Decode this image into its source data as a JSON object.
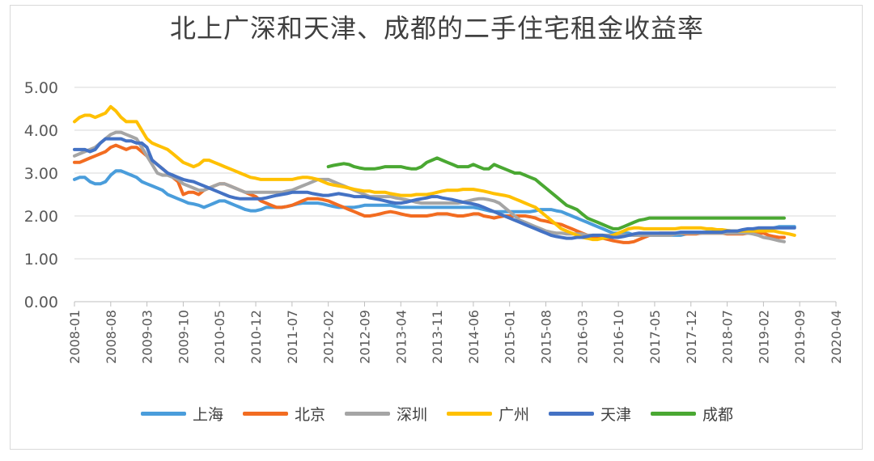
{
  "chart_data": {
    "type": "line",
    "title": "北上广深和天津、成都的二手住宅租金收益率",
    "xlabel": "",
    "ylabel": "",
    "ylim": [
      0,
      5
    ],
    "yticks": [
      "0.00",
      "1.00",
      "2.00",
      "3.00",
      "4.00",
      "5.00"
    ],
    "xticks": [
      "2008-01",
      "2008-08",
      "2009-03",
      "2009-10",
      "2010-05",
      "2010-12",
      "2011-07",
      "2012-02",
      "2012-09",
      "2013-04",
      "2013-11",
      "2014-06",
      "2015-01",
      "2015-08",
      "2016-03",
      "2016-10",
      "2017-05",
      "2017-12",
      "2018-07",
      "2019-02",
      "2019-09",
      "2020-04"
    ],
    "grid": true,
    "legend_position": "bottom",
    "series": [
      {
        "name": "上海",
        "color": "#4a9ddb",
        "start_index": 0,
        "values": [
          2.85,
          2.9,
          2.9,
          2.8,
          2.75,
          2.75,
          2.8,
          2.95,
          3.05,
          3.05,
          3.0,
          2.95,
          2.9,
          2.8,
          2.75,
          2.7,
          2.65,
          2.6,
          2.5,
          2.45,
          2.4,
          2.35,
          2.3,
          2.28,
          2.25,
          2.2,
          2.25,
          2.3,
          2.35,
          2.35,
          2.3,
          2.25,
          2.2,
          2.15,
          2.12,
          2.12,
          2.15,
          2.2,
          2.2,
          2.2,
          2.2,
          2.22,
          2.25,
          2.28,
          2.3,
          2.3,
          2.3,
          2.3,
          2.28,
          2.25,
          2.22,
          2.2,
          2.2,
          2.2,
          2.2,
          2.22,
          2.25,
          2.25,
          2.25,
          2.25,
          2.25,
          2.25,
          2.22,
          2.2,
          2.2,
          2.2,
          2.2,
          2.2,
          2.2,
          2.2,
          2.2,
          2.2,
          2.2,
          2.2,
          2.2,
          2.2,
          2.2,
          2.2,
          2.18,
          2.15,
          2.12,
          2.1,
          2.1,
          2.1,
          2.1,
          2.1,
          2.1,
          2.1,
          2.1,
          2.12,
          2.15,
          2.15,
          2.15,
          2.12,
          2.1,
          2.05,
          2.0,
          1.95,
          1.9,
          1.85,
          1.8,
          1.75,
          1.7,
          1.65,
          1.6,
          1.6,
          1.6,
          1.6,
          1.55,
          1.55,
          1.55,
          1.55,
          1.55,
          1.55,
          1.55,
          1.55,
          1.55,
          1.55,
          1.58,
          1.6,
          1.6,
          1.6,
          1.62,
          1.62,
          1.62,
          1.62,
          1.62,
          1.65,
          1.65,
          1.65,
          1.65,
          1.65,
          1.65,
          1.68,
          1.7,
          1.72,
          1.75,
          1.75,
          1.75,
          1.75
        ]
      },
      {
        "name": "北京",
        "color": "#f26c21",
        "start_index": 0,
        "values": [
          3.25,
          3.25,
          3.3,
          3.35,
          3.4,
          3.45,
          3.5,
          3.6,
          3.65,
          3.6,
          3.55,
          3.6,
          3.6,
          3.5,
          3.4,
          3.3,
          3.2,
          3.1,
          3.0,
          2.9,
          2.8,
          2.5,
          2.55,
          2.55,
          2.5,
          2.6,
          2.65,
          2.7,
          2.75,
          2.75,
          2.7,
          2.65,
          2.6,
          2.55,
          2.5,
          2.45,
          2.35,
          2.3,
          2.25,
          2.2,
          2.2,
          2.22,
          2.25,
          2.3,
          2.35,
          2.4,
          2.4,
          2.4,
          2.38,
          2.35,
          2.3,
          2.25,
          2.2,
          2.15,
          2.1,
          2.05,
          2.0,
          2.0,
          2.02,
          2.05,
          2.08,
          2.1,
          2.08,
          2.05,
          2.02,
          2.0,
          2.0,
          2.0,
          2.0,
          2.02,
          2.05,
          2.05,
          2.05,
          2.02,
          2.0,
          2.0,
          2.02,
          2.05,
          2.05,
          2.0,
          1.98,
          1.95,
          1.98,
          2.0,
          2.0,
          2.0,
          2.0,
          2.0,
          1.98,
          1.95,
          1.9,
          1.88,
          1.85,
          1.82,
          1.8,
          1.75,
          1.7,
          1.65,
          1.6,
          1.55,
          1.52,
          1.5,
          1.48,
          1.45,
          1.42,
          1.4,
          1.38,
          1.38,
          1.4,
          1.45,
          1.5,
          1.55,
          1.58,
          1.6,
          1.6,
          1.6,
          1.6,
          1.6,
          1.58,
          1.58,
          1.58,
          1.6,
          1.6,
          1.6,
          1.6,
          1.6,
          1.58,
          1.58,
          1.58,
          1.58,
          1.6,
          1.6,
          1.6,
          1.6,
          1.55,
          1.52,
          1.5,
          1.5
        ]
      },
      {
        "name": "深圳",
        "color": "#a5a5a5",
        "start_index": 0,
        "values": [
          3.4,
          3.45,
          3.5,
          3.55,
          3.6,
          3.7,
          3.8,
          3.9,
          3.95,
          3.95,
          3.9,
          3.85,
          3.8,
          3.6,
          3.4,
          3.2,
          3.0,
          2.95,
          2.95,
          2.9,
          2.85,
          2.75,
          2.7,
          2.65,
          2.6,
          2.6,
          2.65,
          2.7,
          2.75,
          2.75,
          2.7,
          2.65,
          2.6,
          2.55,
          2.55,
          2.55,
          2.55,
          2.55,
          2.55,
          2.55,
          2.55,
          2.58,
          2.6,
          2.65,
          2.7,
          2.75,
          2.8,
          2.85,
          2.85,
          2.85,
          2.8,
          2.75,
          2.7,
          2.65,
          2.6,
          2.55,
          2.5,
          2.45,
          2.45,
          2.45,
          2.45,
          2.45,
          2.42,
          2.4,
          2.38,
          2.35,
          2.32,
          2.3,
          2.3,
          2.3,
          2.3,
          2.3,
          2.3,
          2.3,
          2.3,
          2.32,
          2.35,
          2.38,
          2.4,
          2.4,
          2.38,
          2.35,
          2.3,
          2.2,
          2.1,
          2.0,
          1.9,
          1.85,
          1.8,
          1.75,
          1.7,
          1.65,
          1.62,
          1.6,
          1.6,
          1.58,
          1.58,
          1.58,
          1.58,
          1.55,
          1.55,
          1.55,
          1.55,
          1.55,
          1.55,
          1.55,
          1.55,
          1.55,
          1.55,
          1.55,
          1.55,
          1.55,
          1.55,
          1.55,
          1.55,
          1.55,
          1.58,
          1.6,
          1.6,
          1.6,
          1.6,
          1.6,
          1.6,
          1.6,
          1.6,
          1.6,
          1.6,
          1.6,
          1.6,
          1.6,
          1.6,
          1.58,
          1.55,
          1.5,
          1.48,
          1.45,
          1.42,
          1.4
        ]
      },
      {
        "name": "广州",
        "color": "#ffc000",
        "start_index": 0,
        "values": [
          4.2,
          4.3,
          4.35,
          4.35,
          4.3,
          4.35,
          4.4,
          4.55,
          4.45,
          4.3,
          4.2,
          4.2,
          4.2,
          4.0,
          3.8,
          3.7,
          3.65,
          3.6,
          3.55,
          3.45,
          3.35,
          3.25,
          3.2,
          3.15,
          3.2,
          3.3,
          3.3,
          3.25,
          3.2,
          3.15,
          3.1,
          3.05,
          3.0,
          2.95,
          2.9,
          2.88,
          2.85,
          2.85,
          2.85,
          2.85,
          2.85,
          2.85,
          2.85,
          2.88,
          2.9,
          2.9,
          2.88,
          2.85,
          2.8,
          2.75,
          2.72,
          2.7,
          2.68,
          2.65,
          2.62,
          2.6,
          2.58,
          2.58,
          2.55,
          2.55,
          2.55,
          2.52,
          2.5,
          2.48,
          2.48,
          2.48,
          2.5,
          2.5,
          2.5,
          2.52,
          2.55,
          2.58,
          2.6,
          2.6,
          2.6,
          2.62,
          2.62,
          2.62,
          2.6,
          2.58,
          2.55,
          2.52,
          2.5,
          2.48,
          2.45,
          2.4,
          2.35,
          2.3,
          2.25,
          2.2,
          2.1,
          2.0,
          1.9,
          1.8,
          1.7,
          1.65,
          1.6,
          1.55,
          1.5,
          1.48,
          1.45,
          1.45,
          1.48,
          1.5,
          1.55,
          1.6,
          1.65,
          1.7,
          1.72,
          1.72,
          1.7,
          1.7,
          1.7,
          1.7,
          1.7,
          1.7,
          1.7,
          1.72,
          1.72,
          1.72,
          1.72,
          1.72,
          1.7,
          1.7,
          1.68,
          1.68,
          1.66,
          1.65,
          1.65,
          1.65,
          1.65,
          1.65,
          1.65,
          1.65,
          1.65,
          1.65,
          1.62,
          1.6,
          1.58,
          1.55
        ]
      },
      {
        "name": "天津",
        "color": "#4472c4",
        "start_index": 0,
        "values": [
          3.55,
          3.55,
          3.55,
          3.5,
          3.55,
          3.7,
          3.8,
          3.8,
          3.8,
          3.8,
          3.75,
          3.75,
          3.7,
          3.7,
          3.6,
          3.3,
          3.2,
          3.1,
          3.0,
          2.95,
          2.9,
          2.85,
          2.82,
          2.8,
          2.75,
          2.7,
          2.65,
          2.6,
          2.55,
          2.5,
          2.45,
          2.42,
          2.4,
          2.4,
          2.4,
          2.4,
          2.4,
          2.42,
          2.45,
          2.48,
          2.5,
          2.52,
          2.55,
          2.55,
          2.55,
          2.55,
          2.52,
          2.5,
          2.48,
          2.48,
          2.5,
          2.52,
          2.5,
          2.48,
          2.45,
          2.45,
          2.45,
          2.42,
          2.4,
          2.38,
          2.35,
          2.32,
          2.3,
          2.3,
          2.32,
          2.35,
          2.38,
          2.4,
          2.42,
          2.45,
          2.45,
          2.42,
          2.4,
          2.38,
          2.35,
          2.32,
          2.3,
          2.28,
          2.25,
          2.2,
          2.15,
          2.1,
          2.05,
          2.0,
          1.95,
          1.9,
          1.85,
          1.8,
          1.75,
          1.7,
          1.65,
          1.6,
          1.55,
          1.52,
          1.5,
          1.48,
          1.48,
          1.5,
          1.5,
          1.52,
          1.55,
          1.55,
          1.55,
          1.52,
          1.5,
          1.5,
          1.52,
          1.55,
          1.58,
          1.6,
          1.6,
          1.6,
          1.6,
          1.6,
          1.6,
          1.6,
          1.6,
          1.62,
          1.62,
          1.62,
          1.62,
          1.62,
          1.62,
          1.62,
          1.62,
          1.62,
          1.65,
          1.65,
          1.65,
          1.68,
          1.7,
          1.7,
          1.72,
          1.72,
          1.72,
          1.72,
          1.72,
          1.72,
          1.72,
          1.72
        ]
      },
      {
        "name": "成都",
        "color": "#4aa832",
        "start_index": 49,
        "values": [
          3.15,
          3.18,
          3.2,
          3.22,
          3.2,
          3.15,
          3.12,
          3.1,
          3.1,
          3.1,
          3.12,
          3.15,
          3.15,
          3.15,
          3.15,
          3.12,
          3.1,
          3.1,
          3.15,
          3.25,
          3.3,
          3.35,
          3.3,
          3.25,
          3.2,
          3.15,
          3.15,
          3.15,
          3.2,
          3.15,
          3.1,
          3.1,
          3.2,
          3.15,
          3.1,
          3.05,
          3.0,
          3.0,
          2.95,
          2.9,
          2.85,
          2.75,
          2.65,
          2.55,
          2.45,
          2.35,
          2.25,
          2.2,
          2.15,
          2.05,
          1.95,
          1.9,
          1.85,
          1.8,
          1.75,
          1.7,
          1.7,
          1.75,
          1.8,
          1.85,
          1.9,
          1.92,
          1.95,
          1.95,
          1.95,
          1.95,
          1.95,
          1.95,
          1.95,
          1.95,
          1.95,
          1.95,
          1.95,
          1.95,
          1.95,
          1.95,
          1.95,
          1.95,
          1.95,
          1.95,
          1.95,
          1.95,
          1.95,
          1.95,
          1.95,
          1.95,
          1.95,
          1.95,
          1.95
        ]
      }
    ]
  }
}
